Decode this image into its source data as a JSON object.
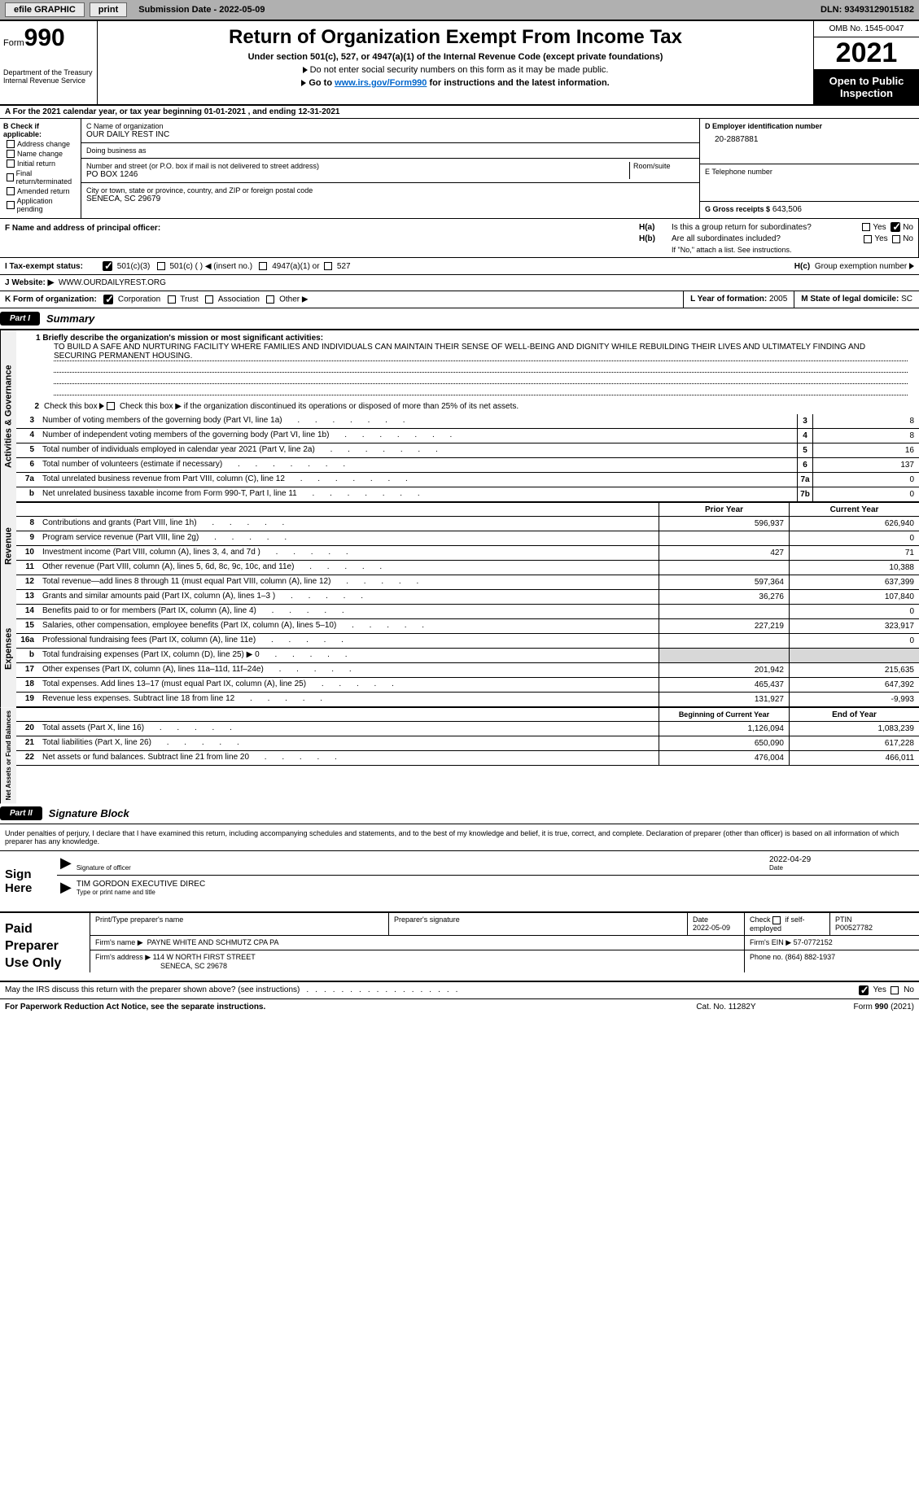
{
  "topbar": {
    "efile": "efile GRAPHIC",
    "print": "print",
    "sub_date_lbl": "Submission Date - 2022-05-09",
    "dln": "DLN: 93493129015182"
  },
  "header": {
    "form_word": "Form",
    "form_num": "990",
    "dept": "Department of the Treasury\nInternal Revenue Service",
    "title": "Return of Organization Exempt From Income Tax",
    "sub": "Under section 501(c), 527, or 4947(a)(1) of the Internal Revenue Code (except private foundations)",
    "sub2a": "Do not enter social security numbers on this form as it may be made public.",
    "sub2b_pre": "Go to ",
    "sub2b_link": "www.irs.gov/Form990",
    "sub2b_post": " for instructions and the latest information.",
    "omb": "OMB No. 1545-0047",
    "year": "2021",
    "open": "Open to Public Inspection"
  },
  "period": {
    "text": "A For the 2021 calendar year, or tax year beginning 01-01-2021     , and ending 12-31-2021"
  },
  "blockB": {
    "hdr": "B Check if applicable:",
    "opts": [
      "Address change",
      "Name change",
      "Initial return",
      "Final return/terminated",
      "Amended return",
      "Application pending"
    ]
  },
  "blockC": {
    "name_lbl": "C Name of organization",
    "name": "OUR DAILY REST INC",
    "dba_lbl": "Doing business as",
    "addr_lbl": "Number and street (or P.O. box if mail is not delivered to street address)",
    "room_lbl": "Room/suite",
    "addr": "PO BOX 1246",
    "city_lbl": "City or town, state or province, country, and ZIP or foreign postal code",
    "city": "SENECA, SC  29679"
  },
  "blockD": {
    "lbl": "D Employer identification number",
    "val": "20-2887881"
  },
  "blockE": {
    "lbl": "E Telephone number",
    "val": ""
  },
  "blockG": {
    "lbl": "G Gross receipts $",
    "val": "643,506"
  },
  "blockF": {
    "lbl": "F  Name and address of principal officer:",
    "val": ""
  },
  "blockH": {
    "a": "Is this a group return for subordinates?",
    "b": "Are all subordinates included?",
    "note": "If \"No,\" attach a list. See instructions.",
    "c": "Group exemption number",
    "yes": "Yes",
    "no": "No"
  },
  "blockI": {
    "lbl": "I     Tax-exempt status:",
    "o1": "501(c)(3)",
    "o2": "501(c) (   )  ◀ (insert no.)",
    "o3": "4947(a)(1) or",
    "o4": "527"
  },
  "blockJ": {
    "lbl": "J    Website: ▶",
    "val": "WWW.OURDAILYREST.ORG"
  },
  "blockK": {
    "lbl": "K Form of organization:",
    "o1": "Corporation",
    "o2": "Trust",
    "o3": "Association",
    "o4": "Other ▶"
  },
  "blockL": {
    "lbl": "L Year of formation:",
    "val": "2005"
  },
  "blockM": {
    "lbl": "M State of legal domicile:",
    "val": "SC"
  },
  "part1": {
    "hdr": "Part I",
    "title": "Summary",
    "l1_lbl": "1   Briefly describe the organization's mission or most significant activities:",
    "l1_text": "TO BUILD A SAFE AND NURTURING FACILITY WHERE FAMILIES AND INDIVIDUALS CAN MAINTAIN THEIR SENSE OF WELL-BEING AND DIGNITY WHILE REBUILDING THEIR LIVES AND ULTIMATELY FINDING AND SECURING PERMANENT HOUSING.",
    "l2": "Check this box ▶        if the organization discontinued its operations or disposed of more than 25% of its net assets.",
    "rows_ag": [
      {
        "n": "3",
        "d": "Number of voting members of the governing body (Part VI, line 1a)",
        "box": "3",
        "v": "8"
      },
      {
        "n": "4",
        "d": "Number of independent voting members of the governing body (Part VI, line 1b)",
        "box": "4",
        "v": "8"
      },
      {
        "n": "5",
        "d": "Total number of individuals employed in calendar year 2021 (Part V, line 2a)",
        "box": "5",
        "v": "16"
      },
      {
        "n": "6",
        "d": "Total number of volunteers (estimate if necessary)",
        "box": "6",
        "v": "137"
      },
      {
        "n": "7a",
        "d": "Total unrelated business revenue from Part VIII, column (C), line 12",
        "box": "7a",
        "v": "0"
      },
      {
        "n": "b",
        "d": "Net unrelated business taxable income from Form 990-T, Part I, line 11",
        "box": "7b",
        "v": "0"
      }
    ],
    "prior_hdr": "Prior Year",
    "curr_hdr": "Current Year",
    "rows_rev": [
      {
        "n": "8",
        "d": "Contributions and grants (Part VIII, line 1h)",
        "p": "596,937",
        "c": "626,940"
      },
      {
        "n": "9",
        "d": "Program service revenue (Part VIII, line 2g)",
        "p": "",
        "c": "0"
      },
      {
        "n": "10",
        "d": "Investment income (Part VIII, column (A), lines 3, 4, and 7d )",
        "p": "427",
        "c": "71"
      },
      {
        "n": "11",
        "d": "Other revenue (Part VIII, column (A), lines 5, 6d, 8c, 9c, 10c, and 11e)",
        "p": "",
        "c": "10,388"
      },
      {
        "n": "12",
        "d": "Total revenue—add lines 8 through 11 (must equal Part VIII, column (A), line 12)",
        "p": "597,364",
        "c": "637,399"
      }
    ],
    "rows_exp": [
      {
        "n": "13",
        "d": "Grants and similar amounts paid (Part IX, column (A), lines 1–3 )",
        "p": "36,276",
        "c": "107,840"
      },
      {
        "n": "14",
        "d": "Benefits paid to or for members (Part IX, column (A), line 4)",
        "p": "",
        "c": "0"
      },
      {
        "n": "15",
        "d": "Salaries, other compensation, employee benefits (Part IX, column (A), lines 5–10)",
        "p": "227,219",
        "c": "323,917"
      },
      {
        "n": "16a",
        "d": "Professional fundraising fees (Part IX, column (A), line 11e)",
        "p": "",
        "c": "0"
      },
      {
        "n": "b",
        "d": "Total fundraising expenses (Part IX, column (D), line 25) ▶ 0",
        "p": "__GRAY__",
        "c": "__GRAY__"
      },
      {
        "n": "17",
        "d": "Other expenses (Part IX, column (A), lines 11a–11d, 11f–24e)",
        "p": "201,942",
        "c": "215,635"
      },
      {
        "n": "18",
        "d": "Total expenses. Add lines 13–17 (must equal Part IX, column (A), line 25)",
        "p": "465,437",
        "c": "647,392"
      },
      {
        "n": "19",
        "d": "Revenue less expenses. Subtract line 18 from line 12",
        "p": "131,927",
        "c": "-9,993"
      }
    ],
    "beg_hdr": "Beginning of Current Year",
    "end_hdr": "End of Year",
    "rows_na": [
      {
        "n": "20",
        "d": "Total assets (Part X, line 16)",
        "p": "1,126,094",
        "c": "1,083,239"
      },
      {
        "n": "21",
        "d": "Total liabilities (Part X, line 26)",
        "p": "650,090",
        "c": "617,228"
      },
      {
        "n": "22",
        "d": "Net assets or fund balances. Subtract line 21 from line 20",
        "p": "476,004",
        "c": "466,011"
      }
    ],
    "vtab_ag": "Activities & Governance",
    "vtab_rev": "Revenue",
    "vtab_exp": "Expenses",
    "vtab_na": "Net Assets or Fund Balances"
  },
  "part2": {
    "hdr": "Part II",
    "title": "Signature Block",
    "decl": "Under penalties of perjury, I declare that I have examined this return, including accompanying schedules and statements, and to the best of my knowledge and belief, it is true, correct, and complete. Declaration of preparer (other than officer) is based on all information of which preparer has any knowledge.",
    "sign_here": "Sign Here",
    "sig_officer": "Signature of officer",
    "date": "Date",
    "date_v": "2022-04-29",
    "name_title": "TIM GORDON  EXECUTIVE DIREC",
    "name_title_lbl": "Type or print name and title",
    "paid": "Paid Preparer Use Only",
    "prep_name_lbl": "Print/Type preparer's name",
    "prep_sig_lbl": "Preparer's signature",
    "prep_date_lbl": "Date",
    "prep_date_v": "2022-05-09",
    "self_emp": "Check          if self-employed",
    "ptin_lbl": "PTIN",
    "ptin": "P00527782",
    "firm_name_lbl": "Firm's name   ▶",
    "firm_name": "PAYNE WHITE AND SCHMUTZ CPA PA",
    "firm_ein_lbl": "Firm's EIN ▶",
    "firm_ein": "57-0772152",
    "firm_addr_lbl": "Firm's address ▶",
    "firm_addr": "114 W NORTH FIRST STREET",
    "firm_city": "SENECA, SC  29678",
    "phone_lbl": "Phone no.",
    "phone": "(864) 882-1937",
    "discuss": "May the IRS discuss this return with the preparer shown above? (see instructions)",
    "yes": "Yes",
    "no": "No"
  },
  "footer": {
    "left": "For Paperwork Reduction Act Notice, see the separate instructions.",
    "mid": "Cat. No. 11282Y",
    "right": "Form 990 (2021)"
  },
  "colors": {
    "topbar": "#b0b0b0",
    "link": "#0066cc"
  }
}
